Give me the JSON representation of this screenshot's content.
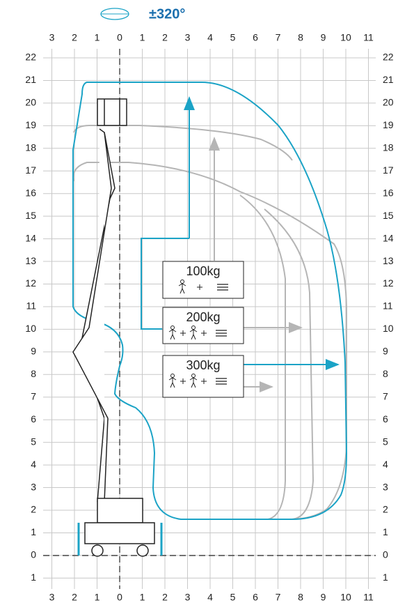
{
  "rotation": "±320°",
  "x_labels": [
    "3",
    "2",
    "1",
    "0",
    "1",
    "2",
    "3",
    "4",
    "5",
    "6",
    "7",
    "8",
    "9",
    "10",
    "11"
  ],
  "y_labels": [
    "22",
    "21",
    "20",
    "19",
    "18",
    "17",
    "16",
    "15",
    "14",
    "13",
    "12",
    "11",
    "10",
    "9",
    "8",
    "7",
    "6",
    "5",
    "4",
    "3",
    "2",
    "1",
    "0",
    "1"
  ],
  "loads": [
    {
      "label": "100kg"
    },
    {
      "label": "200kg"
    },
    {
      "label": "300kg"
    }
  ]
}
